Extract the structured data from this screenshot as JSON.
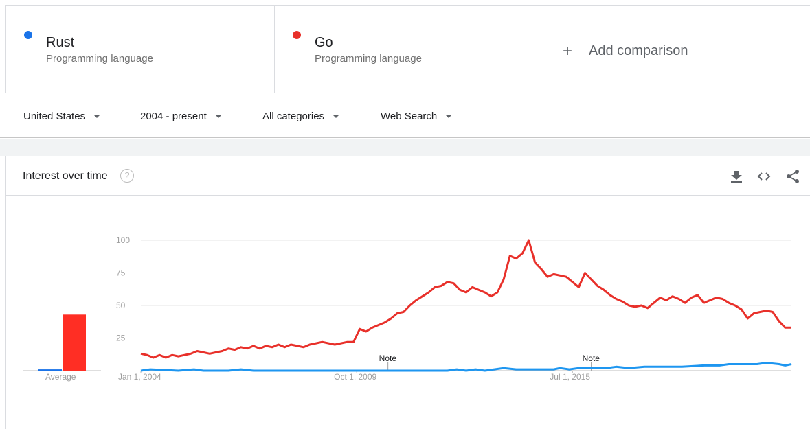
{
  "terms": [
    {
      "name": "Rust",
      "type": "Programming language",
      "color": "#1a73e8"
    },
    {
      "name": "Go",
      "type": "Programming language",
      "color": "#e8302a"
    }
  ],
  "add_comparison": {
    "label": "Add comparison",
    "icon": "plus-icon"
  },
  "filters": {
    "region": "United States",
    "time": "2004 - present",
    "category": "All categories",
    "search_type": "Web Search"
  },
  "chart_header": {
    "title": "Interest over time",
    "help": "?",
    "icons": [
      "download-icon",
      "embed-code-icon",
      "share-icon"
    ]
  },
  "chart_data": {
    "type": "line",
    "title": "",
    "xlabel": "",
    "ylabel": "",
    "ylim": [
      0,
      100
    ],
    "yticks": [
      25,
      50,
      75,
      100
    ],
    "x_tick_labels": [
      "Jan 1, 2004",
      "Oct 1, 2009",
      "Jul 1, 2015"
    ],
    "x_range": [
      "2004-01",
      "2021-05"
    ],
    "grid": true,
    "average_label": "Average",
    "averages": [
      {
        "name": "Rust",
        "value": 1
      },
      {
        "name": "Go",
        "value": 43
      }
    ],
    "notes": [
      {
        "label": "Note",
        "x": "2010-08"
      },
      {
        "label": "Note",
        "x": "2016-01"
      }
    ],
    "series": [
      {
        "name": "Rust",
        "color": "#1e96f0",
        "points": [
          [
            "2004-01",
            0
          ],
          [
            "2004-04",
            1
          ],
          [
            "2005-01",
            0
          ],
          [
            "2005-06",
            1
          ],
          [
            "2005-09",
            0
          ],
          [
            "2006-05",
            0
          ],
          [
            "2006-09",
            1
          ],
          [
            "2007-01",
            0
          ],
          [
            "2009-01",
            0
          ],
          [
            "2011-01",
            0
          ],
          [
            "2012-03",
            0
          ],
          [
            "2012-06",
            1
          ],
          [
            "2012-09",
            0
          ],
          [
            "2012-12",
            1
          ],
          [
            "2013-03",
            0
          ],
          [
            "2013-06",
            1
          ],
          [
            "2013-09",
            2
          ],
          [
            "2014-01",
            1
          ],
          [
            "2014-06",
            1
          ],
          [
            "2015-01",
            1
          ],
          [
            "2015-03",
            2
          ],
          [
            "2015-06",
            1
          ],
          [
            "2015-09",
            2
          ],
          [
            "2016-01",
            2
          ],
          [
            "2016-06",
            2
          ],
          [
            "2016-09",
            3
          ],
          [
            "2017-01",
            2
          ],
          [
            "2017-06",
            3
          ],
          [
            "2018-01",
            3
          ],
          [
            "2018-06",
            3
          ],
          [
            "2019-01",
            4
          ],
          [
            "2019-06",
            4
          ],
          [
            "2019-09",
            5
          ],
          [
            "2020-01",
            5
          ],
          [
            "2020-06",
            5
          ],
          [
            "2020-09",
            6
          ],
          [
            "2021-01",
            5
          ],
          [
            "2021-03",
            4
          ],
          [
            "2021-05",
            5
          ]
        ]
      },
      {
        "name": "Go",
        "color": "#e8302a",
        "points": [
          [
            "2004-01",
            13
          ],
          [
            "2004-03",
            12
          ],
          [
            "2004-05",
            10
          ],
          [
            "2004-07",
            12
          ],
          [
            "2004-09",
            10
          ],
          [
            "2004-11",
            12
          ],
          [
            "2005-01",
            11
          ],
          [
            "2005-03",
            12
          ],
          [
            "2005-05",
            13
          ],
          [
            "2005-07",
            15
          ],
          [
            "2005-09",
            14
          ],
          [
            "2005-11",
            13
          ],
          [
            "2006-01",
            14
          ],
          [
            "2006-03",
            15
          ],
          [
            "2006-05",
            17
          ],
          [
            "2006-07",
            16
          ],
          [
            "2006-09",
            18
          ],
          [
            "2006-11",
            17
          ],
          [
            "2007-01",
            19
          ],
          [
            "2007-03",
            17
          ],
          [
            "2007-05",
            19
          ],
          [
            "2007-07",
            18
          ],
          [
            "2007-09",
            20
          ],
          [
            "2007-11",
            18
          ],
          [
            "2008-01",
            20
          ],
          [
            "2008-03",
            19
          ],
          [
            "2008-05",
            18
          ],
          [
            "2008-07",
            20
          ],
          [
            "2008-09",
            21
          ],
          [
            "2008-11",
            22
          ],
          [
            "2009-01",
            21
          ],
          [
            "2009-03",
            20
          ],
          [
            "2009-05",
            21
          ],
          [
            "2009-07",
            22
          ],
          [
            "2009-09",
            22
          ],
          [
            "2009-11",
            32
          ],
          [
            "2010-01",
            30
          ],
          [
            "2010-03",
            33
          ],
          [
            "2010-05",
            35
          ],
          [
            "2010-07",
            37
          ],
          [
            "2010-09",
            40
          ],
          [
            "2010-11",
            44
          ],
          [
            "2011-01",
            45
          ],
          [
            "2011-03",
            50
          ],
          [
            "2011-05",
            54
          ],
          [
            "2011-07",
            57
          ],
          [
            "2011-09",
            60
          ],
          [
            "2011-11",
            64
          ],
          [
            "2012-01",
            65
          ],
          [
            "2012-03",
            68
          ],
          [
            "2012-05",
            67
          ],
          [
            "2012-07",
            62
          ],
          [
            "2012-09",
            60
          ],
          [
            "2012-11",
            64
          ],
          [
            "2013-01",
            62
          ],
          [
            "2013-03",
            60
          ],
          [
            "2013-05",
            57
          ],
          [
            "2013-07",
            60
          ],
          [
            "2013-09",
            70
          ],
          [
            "2013-11",
            88
          ],
          [
            "2014-01",
            86
          ],
          [
            "2014-03",
            90
          ],
          [
            "2014-05",
            100
          ],
          [
            "2014-07",
            83
          ],
          [
            "2014-09",
            78
          ],
          [
            "2014-11",
            72
          ],
          [
            "2015-01",
            74
          ],
          [
            "2015-03",
            73
          ],
          [
            "2015-05",
            72
          ],
          [
            "2015-07",
            68
          ],
          [
            "2015-09",
            64
          ],
          [
            "2015-11",
            75
          ],
          [
            "2016-01",
            70
          ],
          [
            "2016-03",
            65
          ],
          [
            "2016-05",
            62
          ],
          [
            "2016-07",
            58
          ],
          [
            "2016-09",
            55
          ],
          [
            "2016-11",
            53
          ],
          [
            "2017-01",
            50
          ],
          [
            "2017-03",
            49
          ],
          [
            "2017-05",
            50
          ],
          [
            "2017-07",
            48
          ],
          [
            "2017-09",
            52
          ],
          [
            "2017-11",
            56
          ],
          [
            "2018-01",
            54
          ],
          [
            "2018-03",
            57
          ],
          [
            "2018-05",
            55
          ],
          [
            "2018-07",
            52
          ],
          [
            "2018-09",
            56
          ],
          [
            "2018-11",
            58
          ],
          [
            "2019-01",
            52
          ],
          [
            "2019-03",
            54
          ],
          [
            "2019-05",
            56
          ],
          [
            "2019-07",
            55
          ],
          [
            "2019-09",
            52
          ],
          [
            "2019-11",
            50
          ],
          [
            "2020-01",
            47
          ],
          [
            "2020-03",
            40
          ],
          [
            "2020-05",
            44
          ],
          [
            "2020-07",
            45
          ],
          [
            "2020-09",
            46
          ],
          [
            "2020-11",
            45
          ],
          [
            "2021-01",
            38
          ],
          [
            "2021-03",
            33
          ],
          [
            "2021-05",
            33
          ]
        ]
      }
    ]
  }
}
